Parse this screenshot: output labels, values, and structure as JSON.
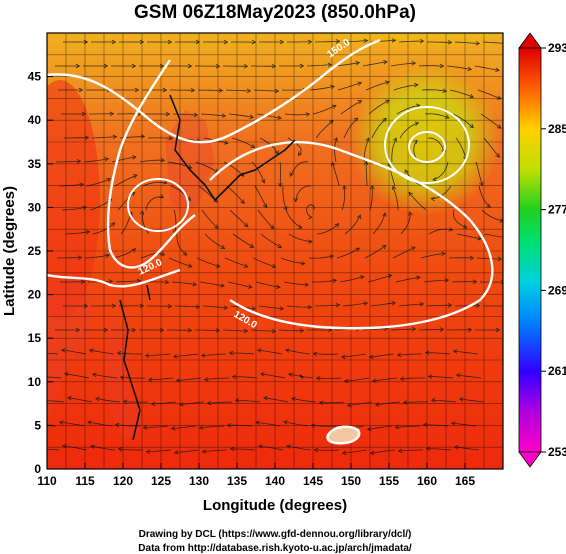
{
  "chart_data": {
    "type": "heatmap",
    "title": "GSM 06Z18May2023 (850.0hPa)",
    "xlabel": "Longitude (degrees)",
    "ylabel": "Latitude (degrees)",
    "xlim": [
      110,
      170
    ],
    "ylim": [
      0,
      50
    ],
    "x_ticks": [
      "110",
      "115",
      "120",
      "125",
      "130",
      "135",
      "140",
      "145",
      "150",
      "155",
      "160",
      "165"
    ],
    "y_ticks": [
      "0",
      "5",
      "10",
      "15",
      "20",
      "25",
      "30",
      "35",
      "40",
      "45"
    ],
    "colorbar": {
      "range": [
        253,
        293
      ],
      "ticks": [
        "293",
        "285",
        "277",
        "269",
        "261",
        "253"
      ],
      "colors": [
        "#ff00c8",
        "#b000e0",
        "#3000ff",
        "#0080ff",
        "#00d0e0",
        "#00e070",
        "#20d020",
        "#c0e000",
        "#ffd000",
        "#ff6000",
        "#e00000"
      ]
    },
    "contours": [
      {
        "label": "120.0",
        "note": "white geopotential contour"
      },
      {
        "label": "120.0",
        "note": "white geopotential contour"
      },
      {
        "label": "150.0",
        "note": "white geopotential contour"
      }
    ],
    "features": [
      "cyclone near 159E 39N",
      "anticyclone near 145E 31N",
      "temperature field with streamlines"
    ],
    "grid": true
  },
  "credits": {
    "line1": "Drawing by DCL (https://www.gfd-dennou.org/library/dcl/)",
    "line2": "Data from http://database.rish.kyoto-u.ac.jp/arch/jmadata/"
  }
}
